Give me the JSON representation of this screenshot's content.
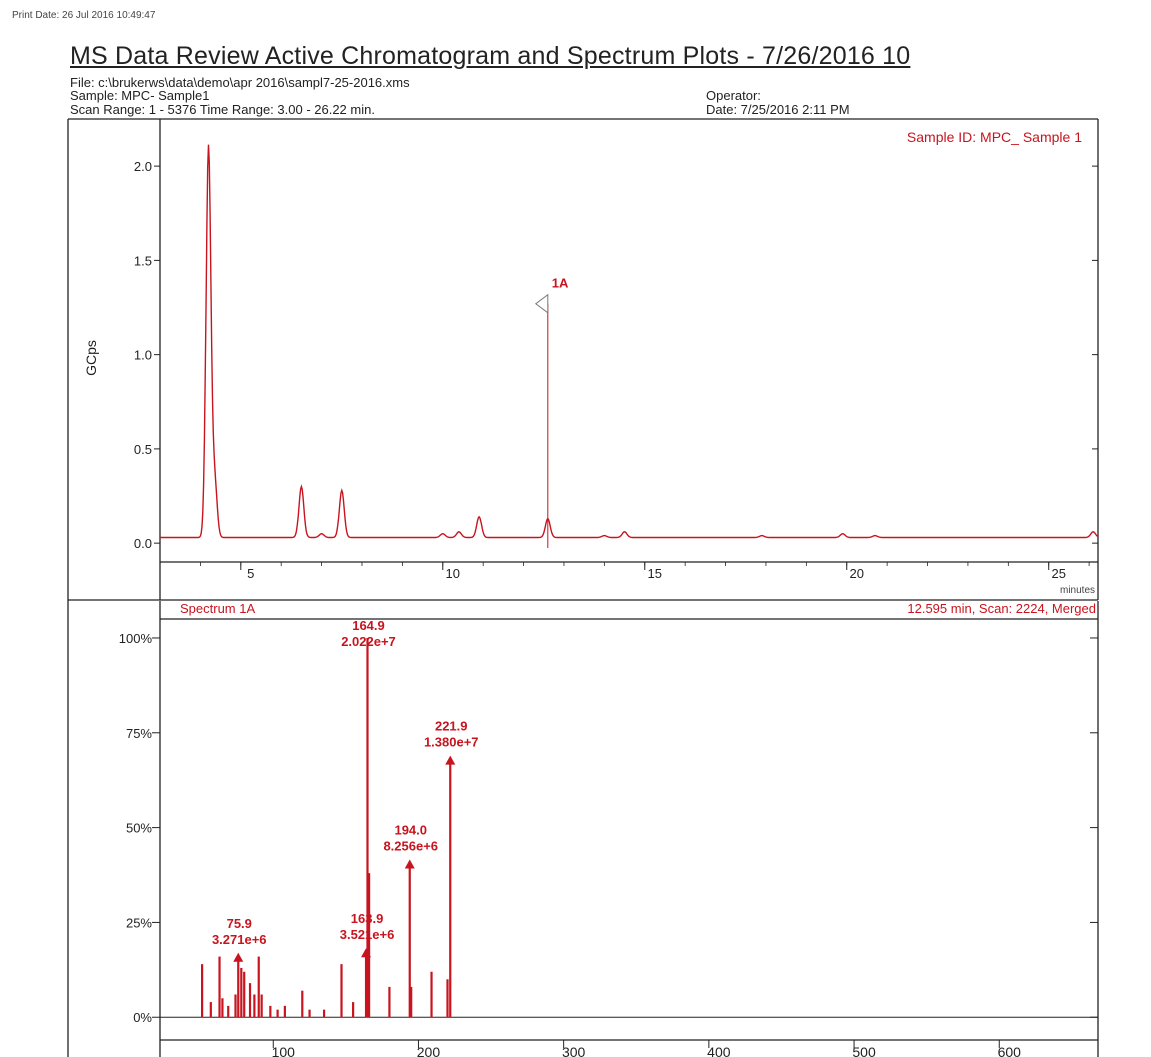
{
  "print_date": "Print Date: 26 Jul 2016 10:49:47",
  "title": "MS Data Review Active Chromatogram and Spectrum Plots - 7/26/2016 10",
  "header": {
    "file": "File: c:\\brukerws\\data\\demo\\apr 2016\\sampl7-25-2016.xms",
    "sample": "Sample: MPC-  Sample1",
    "scan_range": "Scan Range: 1 - 5376 Time Range: 3.00 - 26.22 min.",
    "operator": "Operator:",
    "date": "Date: 7/25/2016 2:11 PM"
  },
  "colors": {
    "trace": "#c8141e",
    "axis": "#222222",
    "text": "#222222"
  },
  "chart_data": [
    {
      "type": "line",
      "title": "Sample ID: MPC_ Sample 1",
      "ylabel": "GCps",
      "xlabel": "minutes",
      "xlim": [
        3.0,
        26.22
      ],
      "ylim": [
        -0.1,
        2.25
      ],
      "x_ticks": [
        5,
        10,
        15,
        20,
        25
      ],
      "y_ticks": [
        0.0,
        0.5,
        1.0,
        1.5,
        2.0
      ],
      "y_tick_labels": [
        "0.0",
        "0.5",
        "1.0",
        "1.5",
        "2.0"
      ],
      "baseline": 0.03,
      "peaks": [
        {
          "x": 4.2,
          "y": 2.1
        },
        {
          "x": 4.35,
          "y": 0.34
        },
        {
          "x": 6.5,
          "y": 0.3
        },
        {
          "x": 7.0,
          "y": 0.05
        },
        {
          "x": 7.5,
          "y": 0.28
        },
        {
          "x": 10.0,
          "y": 0.05
        },
        {
          "x": 10.4,
          "y": 0.06
        },
        {
          "x": 10.9,
          "y": 0.14
        },
        {
          "x": 12.6,
          "y": 0.13
        },
        {
          "x": 14.0,
          "y": 0.04
        },
        {
          "x": 14.5,
          "y": 0.06
        },
        {
          "x": 17.9,
          "y": 0.04
        },
        {
          "x": 19.9,
          "y": 0.05
        },
        {
          "x": 20.7,
          "y": 0.04
        },
        {
          "x": 26.1,
          "y": 0.06
        }
      ],
      "marker": {
        "label": "1A",
        "x": 12.6,
        "y": 1.27
      }
    },
    {
      "type": "bar",
      "title": "Spectrum 1A",
      "subtitle": "12.595 min, Scan: 2224, Merged",
      "xlim": [
        22,
        668
      ],
      "ylim": [
        -6,
        105
      ],
      "x_ticks": [
        100,
        200,
        300,
        400,
        500,
        600
      ],
      "y_ticks": [
        0,
        25,
        50,
        75,
        100
      ],
      "y_tick_labels": [
        "0%",
        "25%",
        "50%",
        "75%",
        "100%"
      ],
      "peaks": [
        {
          "mz": 51,
          "intensity": 14
        },
        {
          "mz": 57,
          "intensity": 4
        },
        {
          "mz": 63,
          "intensity": 16
        },
        {
          "mz": 65,
          "intensity": 5
        },
        {
          "mz": 69,
          "intensity": 3
        },
        {
          "mz": 74,
          "intensity": 6
        },
        {
          "mz": 75.9,
          "intensity": 16.2
        },
        {
          "mz": 78,
          "intensity": 13
        },
        {
          "mz": 80,
          "intensity": 12
        },
        {
          "mz": 84,
          "intensity": 9
        },
        {
          "mz": 87,
          "intensity": 6
        },
        {
          "mz": 90,
          "intensity": 16
        },
        {
          "mz": 92,
          "intensity": 6
        },
        {
          "mz": 98,
          "intensity": 3
        },
        {
          "mz": 103,
          "intensity": 2
        },
        {
          "mz": 108,
          "intensity": 3
        },
        {
          "mz": 120,
          "intensity": 7
        },
        {
          "mz": 125,
          "intensity": 2
        },
        {
          "mz": 135,
          "intensity": 2
        },
        {
          "mz": 147,
          "intensity": 14
        },
        {
          "mz": 155,
          "intensity": 4
        },
        {
          "mz": 163.9,
          "intensity": 17.4
        },
        {
          "mz": 164.9,
          "intensity": 100
        },
        {
          "mz": 166,
          "intensity": 38
        },
        {
          "mz": 180,
          "intensity": 8
        },
        {
          "mz": 194.0,
          "intensity": 40.8
        },
        {
          "mz": 195,
          "intensity": 8
        },
        {
          "mz": 209,
          "intensity": 12
        },
        {
          "mz": 220,
          "intensity": 10
        },
        {
          "mz": 221.9,
          "intensity": 68.2
        }
      ],
      "annotations": [
        {
          "mz": 164.9,
          "intensity": 100,
          "mz_label": "164.9",
          "abundance": "2.022e+7"
        },
        {
          "mz": 221.9,
          "intensity": 68.2,
          "mz_label": "221.9",
          "abundance": "1.380e+7"
        },
        {
          "mz": 194.0,
          "intensity": 40.8,
          "mz_label": "194.0",
          "abundance": "8.256e+6"
        },
        {
          "mz": 75.9,
          "intensity": 16.2,
          "mz_label": "75.9",
          "abundance": "3.271e+6"
        },
        {
          "mz": 163.9,
          "intensity": 17.4,
          "mz_label": "163.9",
          "abundance": "3.521e+6"
        }
      ]
    }
  ]
}
